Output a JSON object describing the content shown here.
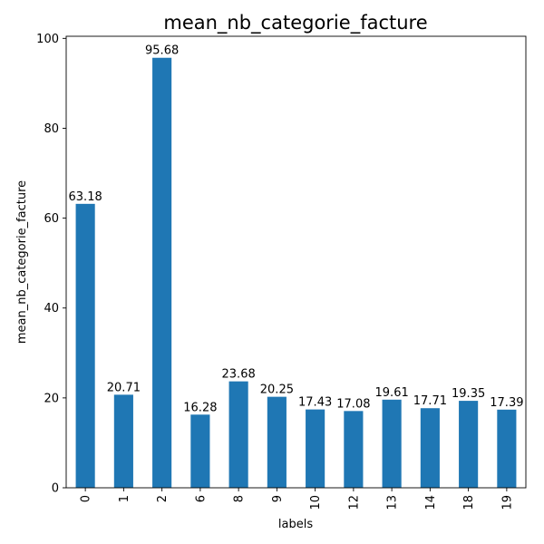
{
  "chart_data": {
    "type": "bar",
    "title": "mean_nb_categorie_facture",
    "xlabel": "labels",
    "ylabel": "mean_nb_categorie_facture",
    "categories": [
      "0",
      "1",
      "2",
      "6",
      "8",
      "9",
      "10",
      "12",
      "13",
      "14",
      "18",
      "19"
    ],
    "values": [
      63.18,
      20.71,
      95.68,
      16.28,
      23.68,
      20.25,
      17.43,
      17.08,
      19.61,
      17.71,
      19.35,
      17.39
    ],
    "data_labels": [
      "63.18",
      "20.71",
      "95.68",
      "16.28",
      "23.68",
      "20.25",
      "17.43",
      "17.08",
      "19.61",
      "17.71",
      "19.35",
      "17.39"
    ],
    "yticks": [
      0,
      20,
      40,
      60,
      80,
      100
    ],
    "ylim": [
      0,
      100.47
    ],
    "grid": false,
    "bar_color": "#1f77b4",
    "x_tick_rotation": "vertical"
  }
}
